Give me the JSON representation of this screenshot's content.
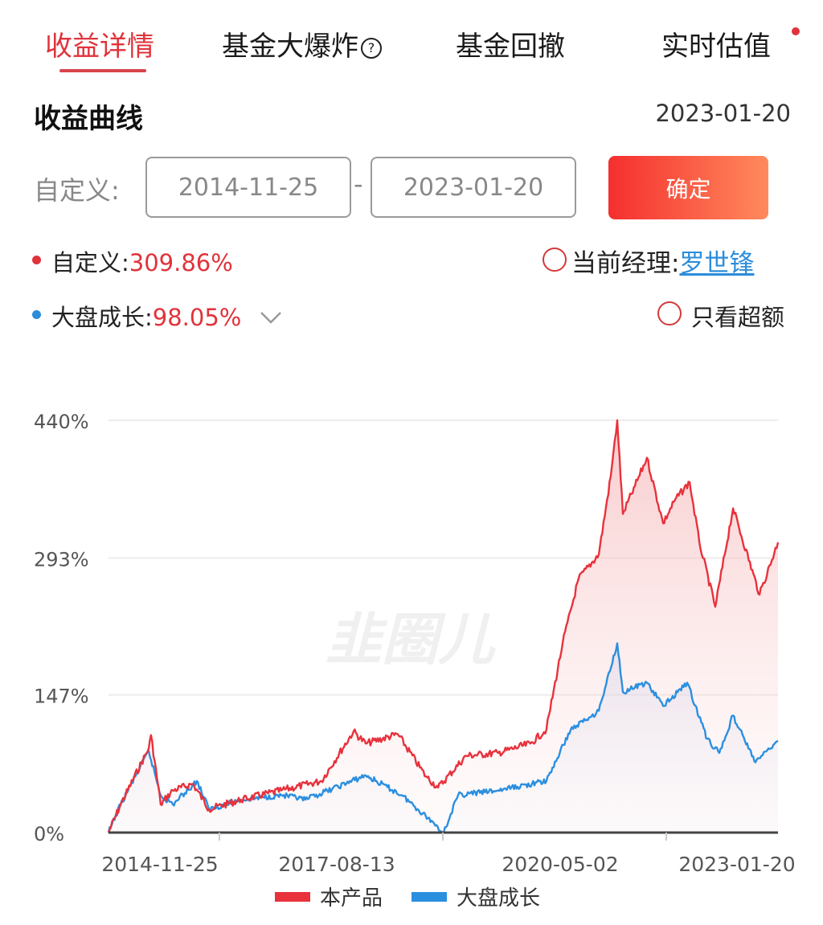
{
  "tabs": [
    {
      "label": "收益详情",
      "active": true
    },
    {
      "label": "基金大爆炸",
      "has_help_icon": true
    },
    {
      "label": "基金回撤"
    },
    {
      "label": "实时估值",
      "has_notification_dot": true
    }
  ],
  "section": {
    "title": "收益曲线",
    "date": "2023-01-20"
  },
  "custom_range": {
    "label": "自定义:",
    "start": "2014-11-25",
    "separator": "-",
    "end": "2023-01-20",
    "confirm_label": "确定"
  },
  "legend_rows": {
    "product": {
      "label": "自定义:",
      "value": "309.86%",
      "dot_color": "#e0333b"
    },
    "benchmark": {
      "label": "大盘成长:",
      "value": "98.05%",
      "dot_color": "#2b8ddb",
      "dropdown_icon": "chevron-down-icon"
    },
    "manager": {
      "label": "当前经理:",
      "name": "罗世锋"
    },
    "excess": {
      "label": "只看超额"
    }
  },
  "watermark": "韭圈儿",
  "chart_data": {
    "type": "line",
    "title": "",
    "xlabel": "",
    "ylabel": "",
    "xlim": [
      "2014-11-25",
      "2023-01-20"
    ],
    "ylim": [
      0,
      440
    ],
    "grid": true,
    "y_ticks": [
      "0%",
      "147%",
      "293%",
      "440%"
    ],
    "y_tick_values": [
      0,
      147,
      293,
      440
    ],
    "x_tick_labels": [
      "2014-11-25",
      "2017-08-13",
      "2020-05-02",
      "2023-01-20"
    ],
    "legend_position": "bottom",
    "series": [
      {
        "name": "本产品",
        "color": "#e8323c",
        "points": [
          [
            "2014-11-25",
            0
          ],
          [
            "2015-01-18",
            30
          ],
          [
            "2015-05-23",
            90
          ],
          [
            "2015-06-02",
            104
          ],
          [
            "2015-07-15",
            30
          ],
          [
            "2015-09-07",
            45
          ],
          [
            "2015-12-05",
            52
          ],
          [
            "2016-02-15",
            25
          ],
          [
            "2016-07-07",
            35
          ],
          [
            "2017-01-02",
            45
          ],
          [
            "2017-06-29",
            55
          ],
          [
            "2017-11-19",
            108
          ],
          [
            "2018-01-12",
            95
          ],
          [
            "2018-06-04",
            105
          ],
          [
            "2018-10-07",
            60
          ],
          [
            "2018-11-30",
            48
          ],
          [
            "2019-04-04",
            82
          ],
          [
            "2019-08-25",
            85
          ],
          [
            "2020-01-15",
            95
          ],
          [
            "2020-03-26",
            110
          ],
          [
            "2020-06-06",
            202
          ],
          [
            "2020-08-16",
            271
          ],
          [
            "2020-11-14",
            297
          ],
          [
            "2021-01-06",
            380
          ],
          [
            "2021-02-04",
            440
          ],
          [
            "2021-03-01",
            340
          ],
          [
            "2021-04-24",
            370
          ],
          [
            "2021-06-16",
            400
          ],
          [
            "2021-08-27",
            330
          ],
          [
            "2021-10-19",
            355
          ],
          [
            "2021-12-23",
            374
          ],
          [
            "2022-02-04",
            310
          ],
          [
            "2022-04-16",
            241
          ],
          [
            "2022-07-04",
            346
          ],
          [
            "2022-10-30",
            254
          ],
          [
            "2023-01-20",
            309.86
          ]
        ]
      },
      {
        "name": "大盘成长",
        "color": "#2b8fe0",
        "points": [
          [
            "2014-11-25",
            0
          ],
          [
            "2015-01-18",
            30
          ],
          [
            "2015-05-23",
            87
          ],
          [
            "2015-07-15",
            40
          ],
          [
            "2015-09-07",
            30
          ],
          [
            "2015-12-23",
            55
          ],
          [
            "2016-02-15",
            25
          ],
          [
            "2016-07-07",
            35
          ],
          [
            "2017-01-02",
            40
          ],
          [
            "2017-04-19",
            35
          ],
          [
            "2018-01-12",
            61
          ],
          [
            "2018-06-22",
            40
          ],
          [
            "2018-11-12",
            10
          ],
          [
            "2018-12-25",
            0
          ],
          [
            "2019-02-27",
            40
          ],
          [
            "2019-08-25",
            45
          ],
          [
            "2020-03-26",
            55
          ],
          [
            "2020-07-12",
            110
          ],
          [
            "2020-11-14",
            130
          ],
          [
            "2021-02-04",
            202
          ],
          [
            "2021-03-01",
            150
          ],
          [
            "2021-06-16",
            160
          ],
          [
            "2021-08-27",
            135
          ],
          [
            "2021-12-12",
            160
          ],
          [
            "2022-03-11",
            100
          ],
          [
            "2022-05-04",
            85
          ],
          [
            "2022-07-04",
            125
          ],
          [
            "2022-10-12",
            75
          ],
          [
            "2023-01-20",
            98.05
          ]
        ]
      }
    ]
  }
}
